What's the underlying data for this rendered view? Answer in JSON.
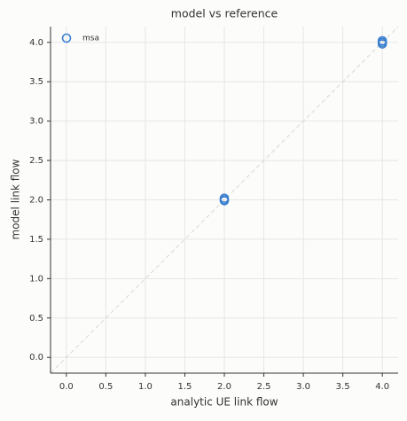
{
  "chart_data": {
    "type": "scatter",
    "title": "model vs reference",
    "x_label": "analytic UE link flow",
    "y_label": "model link flow",
    "series": [
      {
        "name": "msa",
        "color": "#3a7fcf",
        "x": [
          2,
          2,
          2,
          4,
          4,
          4
        ],
        "values": [
          2.0,
          2.02,
          1.99,
          4.0,
          4.02,
          3.98
        ]
      }
    ],
    "xlim": [
      -0.2,
      4.2
    ],
    "ylim": [
      -0.2,
      4.2
    ],
    "xticks": [
      {
        "value": 0,
        "label": "0.0"
      },
      0.5,
      {
        "value": 1,
        "label": "1.0"
      },
      1.5,
      {
        "value": 2,
        "label": "2.0"
      },
      2.5,
      {
        "value": 3,
        "label": "3.0"
      },
      3.5,
      {
        "value": 4,
        "label": "4.0"
      }
    ],
    "yticks": [
      {
        "value": 0,
        "label": "0.0"
      },
      0.5,
      {
        "value": 1,
        "label": "1.0"
      },
      1.5,
      {
        "value": 2,
        "label": "2.0"
      },
      2.5,
      {
        "value": 3,
        "label": "3.0"
      },
      3.5,
      {
        "value": 4,
        "label": "4.0"
      }
    ],
    "grid": true,
    "legend": "upper left"
  }
}
